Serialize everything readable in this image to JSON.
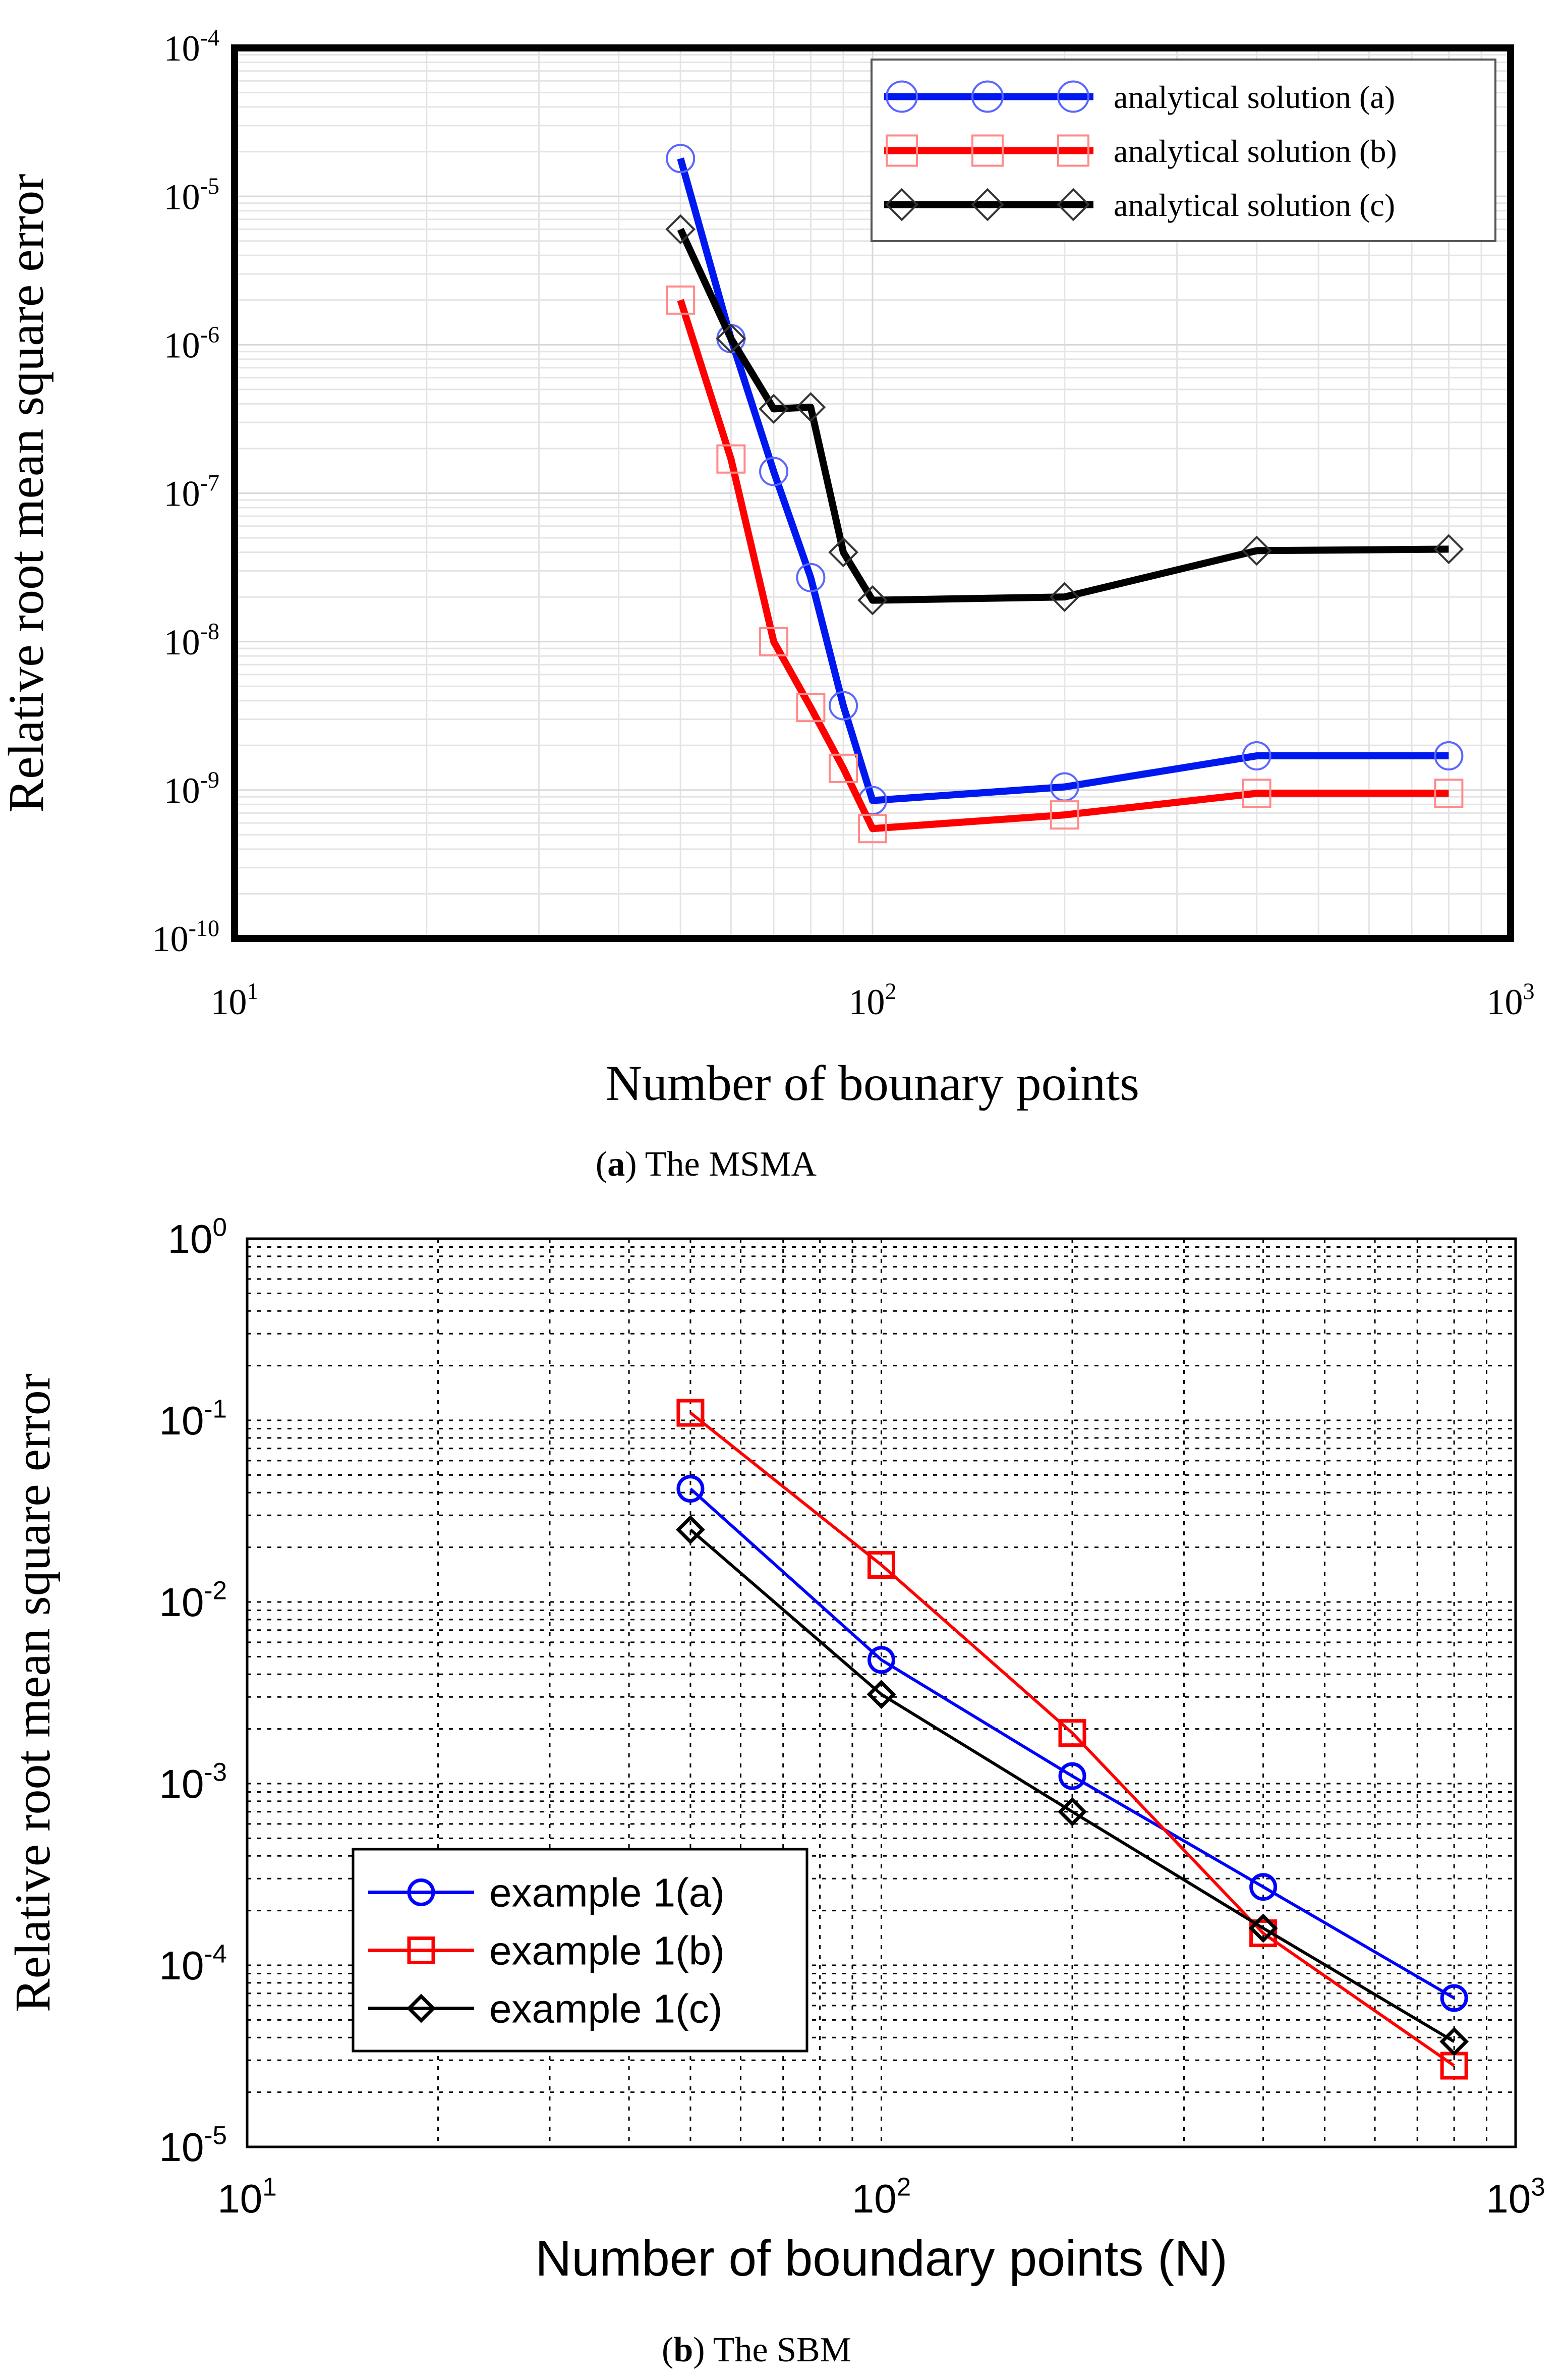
{
  "chart_data": [
    {
      "type": "line",
      "title": "",
      "caption_letter": "a",
      "caption_rest": ") The MSMA",
      "xlabel": "Number of bounary points",
      "ylabel": "Relative root mean square error",
      "xscale": "log",
      "yscale": "log",
      "xlim": [
        10,
        1000
      ],
      "ylim": [
        1e-10,
        0.0001
      ],
      "xticks": [
        {
          "v": 10,
          "base": "10",
          "exp": "1"
        },
        {
          "v": 100,
          "base": "10",
          "exp": "2"
        },
        {
          "v": 1000,
          "base": "10",
          "exp": "3"
        }
      ],
      "yticks": [
        {
          "v": 1e-10,
          "base": "10",
          "exp": "-10"
        },
        {
          "v": 1e-09,
          "base": "10",
          "exp": "-9"
        },
        {
          "v": 1e-08,
          "base": "10",
          "exp": "-8"
        },
        {
          "v": 1e-07,
          "base": "10",
          "exp": "-7"
        },
        {
          "v": 1e-06,
          "base": "10",
          "exp": "-6"
        },
        {
          "v": 1e-05,
          "base": "10",
          "exp": "-5"
        },
        {
          "v": 0.0001,
          "base": "10",
          "exp": "-4"
        }
      ],
      "legend_position": "top-right",
      "series": [
        {
          "name": "analytical solution (a)",
          "color": "#0018f0",
          "marker": "circle",
          "x": [
            50,
            60,
            70,
            80,
            90,
            100,
            200,
            400,
            800
          ],
          "y": [
            1.8e-05,
            1.1e-06,
            1.4e-07,
            2.7e-08,
            3.7e-09,
            8.5e-10,
            1.05e-09,
            1.7e-09,
            1.7e-09
          ]
        },
        {
          "name": "analytical solution (b)",
          "color": "#ff0000",
          "marker": "square",
          "x": [
            50,
            60,
            70,
            80,
            90,
            100,
            200,
            400,
            800
          ],
          "y": [
            2e-06,
            1.7e-07,
            1e-08,
            3.6e-09,
            1.4e-09,
            5.5e-10,
            6.8e-10,
            9.5e-10,
            9.5e-10
          ]
        },
        {
          "name": "analytical solution (c)",
          "color": "#000000",
          "marker": "diamond",
          "x": [
            50,
            60,
            70,
            80,
            90,
            100,
            200,
            400,
            800
          ],
          "y": [
            6e-06,
            1.1e-06,
            3.7e-07,
            3.8e-07,
            4e-08,
            1.9e-08,
            2e-08,
            4.1e-08,
            4.2e-08
          ]
        }
      ]
    },
    {
      "type": "line",
      "title": "",
      "caption_letter": "b",
      "caption_rest": ") The SBM",
      "xlabel": "Number of boundary points (N)",
      "ylabel": "Relative root mean square error",
      "xscale": "log",
      "yscale": "log",
      "xlim": [
        10,
        1000
      ],
      "ylim": [
        1e-05,
        1
      ],
      "xticks": [
        {
          "v": 10,
          "base": "10",
          "exp": "1"
        },
        {
          "v": 100,
          "base": "10",
          "exp": "2"
        },
        {
          "v": 1000,
          "base": "10",
          "exp": "3"
        }
      ],
      "yticks": [
        {
          "v": 1e-05,
          "base": "10",
          "exp": "-5"
        },
        {
          "v": 0.0001,
          "base": "10",
          "exp": "-4"
        },
        {
          "v": 0.001,
          "base": "10",
          "exp": "-3"
        },
        {
          "v": 0.01,
          "base": "10",
          "exp": "-2"
        },
        {
          "v": 0.1,
          "base": "10",
          "exp": "-1"
        },
        {
          "v": 1,
          "base": "10",
          "exp": "0"
        }
      ],
      "legend_position": "bottom-left",
      "series": [
        {
          "name": "example 1(a)",
          "color": "#0000ff",
          "marker": "circle",
          "x": [
            50,
            100,
            200,
            400,
            800
          ],
          "y": [
            0.042,
            0.0048,
            0.0011,
            0.00027,
            6.6e-05
          ]
        },
        {
          "name": "example 1(b)",
          "color": "#ff0000",
          "marker": "square",
          "x": [
            50,
            100,
            200,
            400,
            800
          ],
          "y": [
            0.11,
            0.016,
            0.0019,
            0.00015,
            2.8e-05
          ]
        },
        {
          "name": "example 1(c)",
          "color": "#000000",
          "marker": "diamond",
          "x": [
            50,
            100,
            200,
            400,
            800
          ],
          "y": [
            0.025,
            0.0031,
            0.0007,
            0.00016,
            3.8e-05
          ]
        }
      ]
    }
  ]
}
